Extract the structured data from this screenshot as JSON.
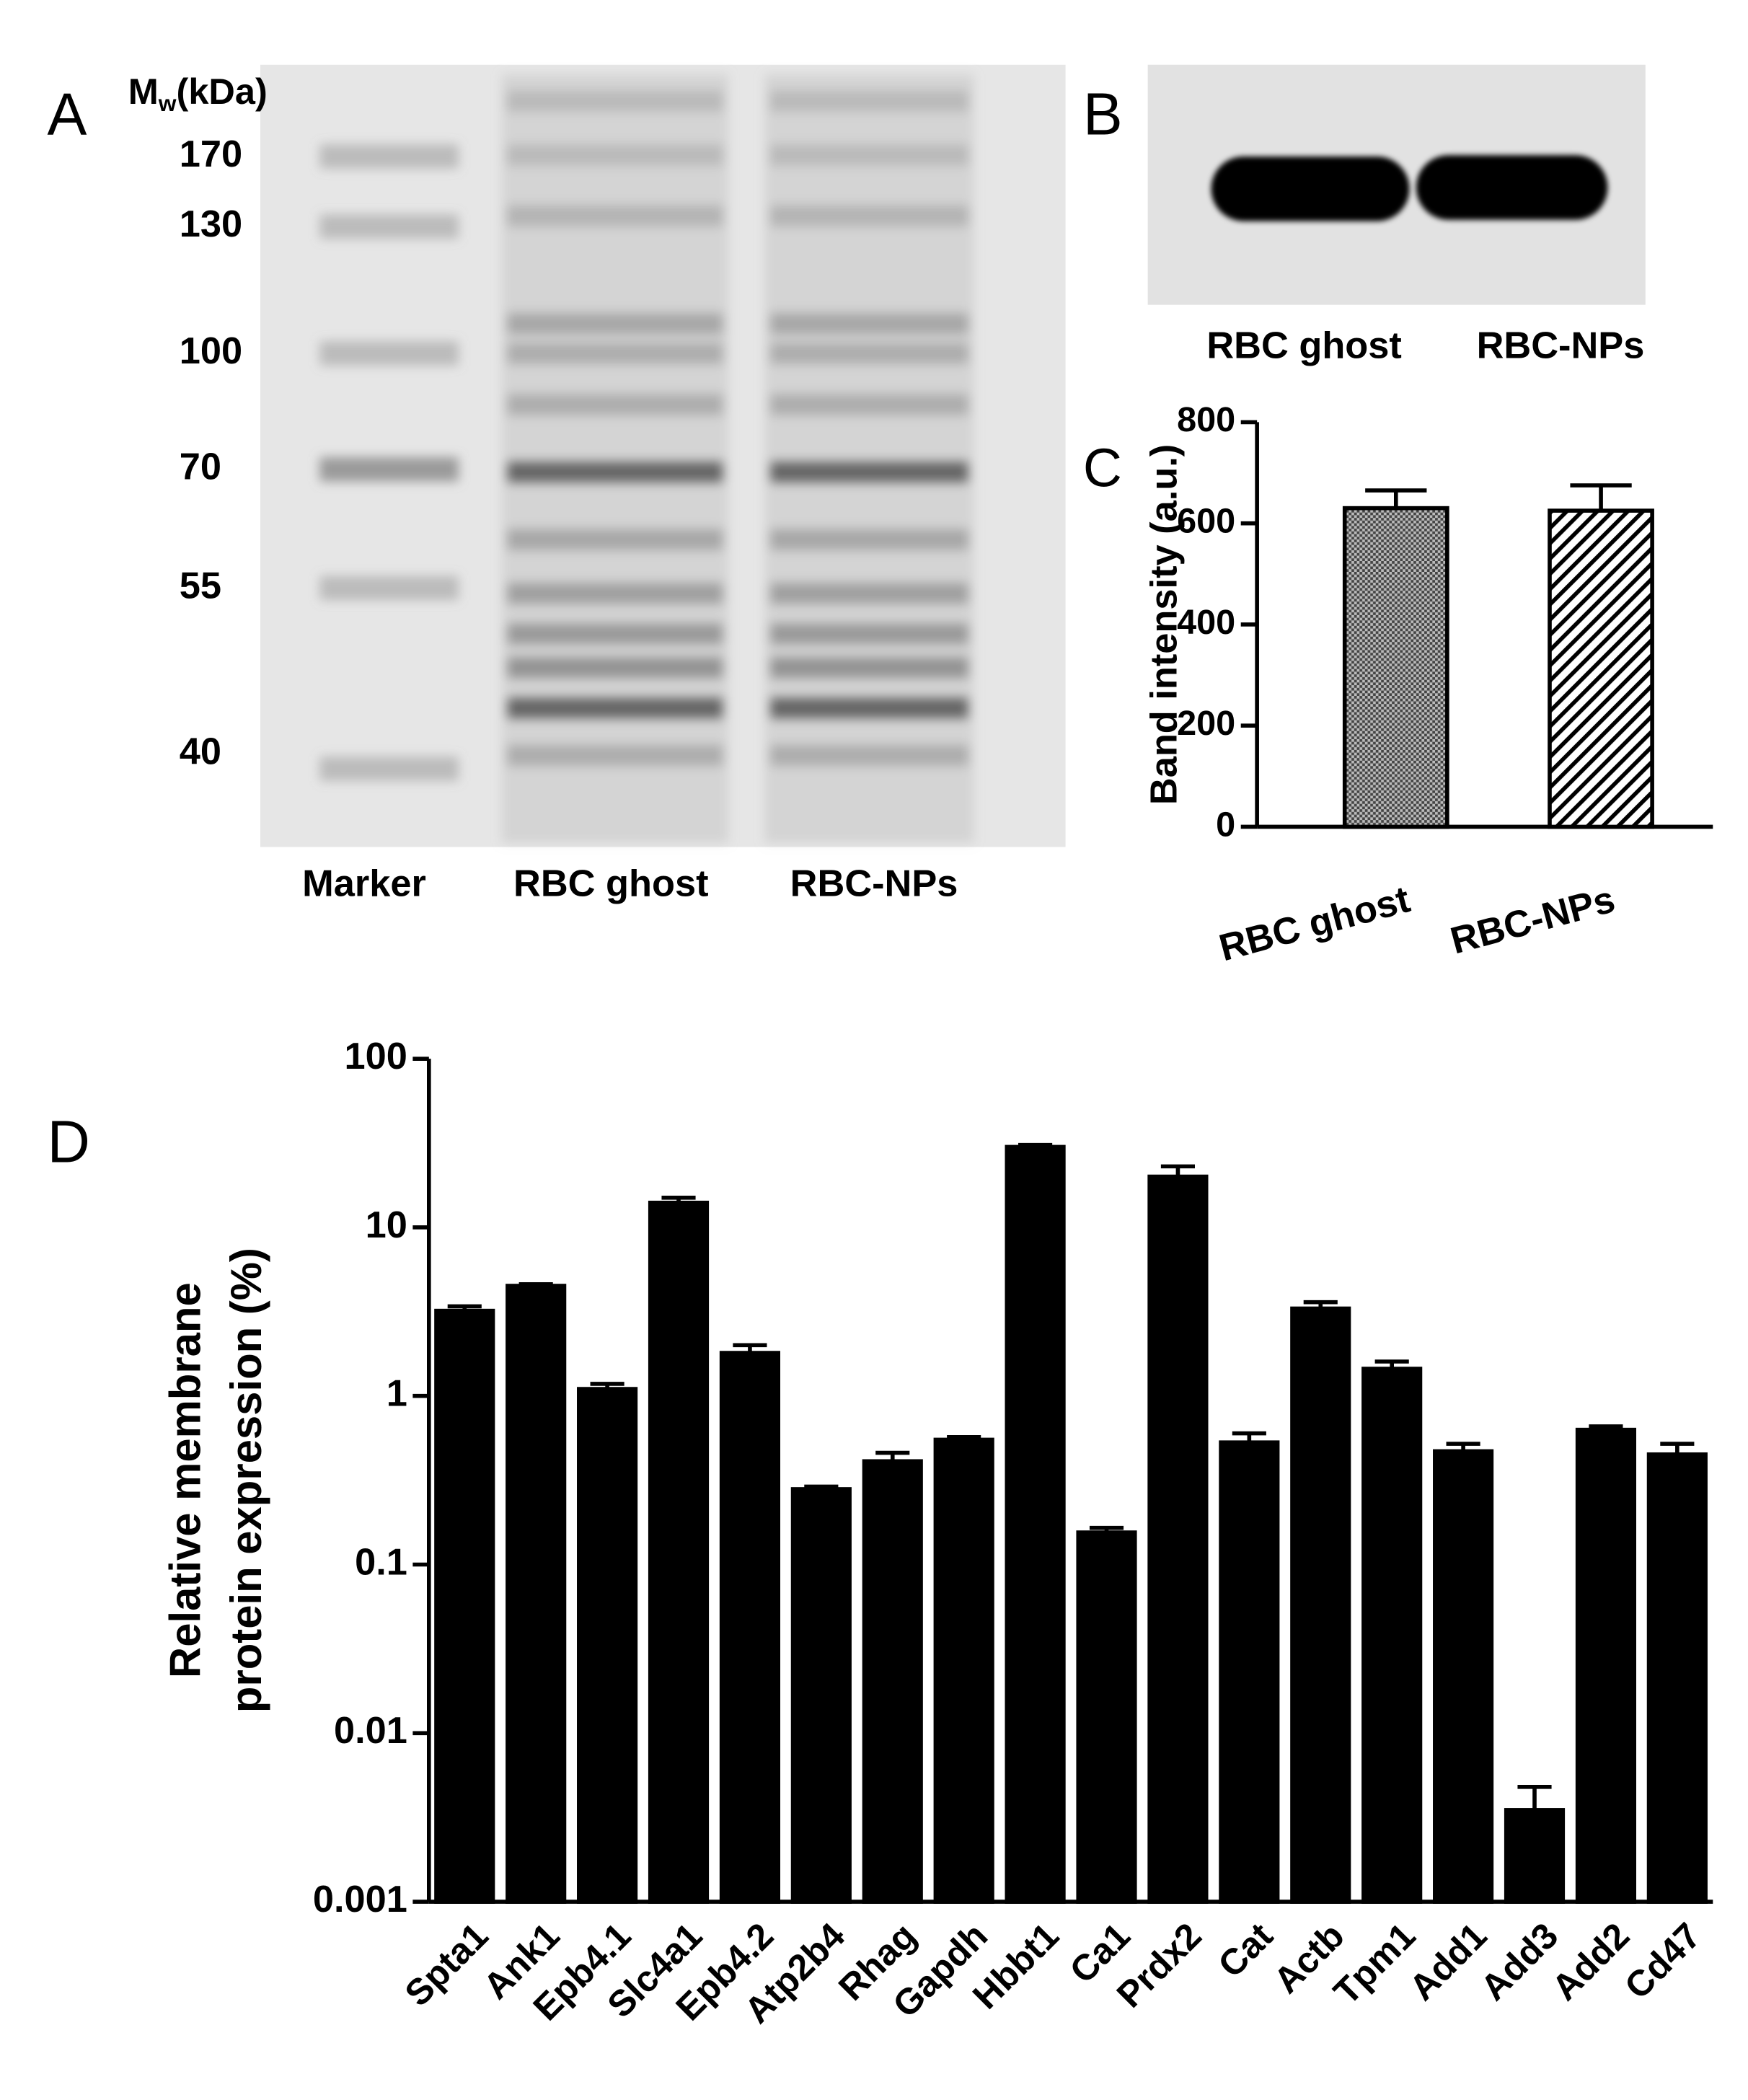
{
  "gel": {
    "panel_label": "A",
    "mw_label": "M",
    "mw_sub": "w",
    "mw_unit": "(kDa)",
    "markers": [
      "170",
      "130",
      "100",
      "70",
      "55",
      "40"
    ],
    "lanes": [
      "Marker",
      "RBC ghost",
      "RBC-NPs"
    ]
  },
  "blot": {
    "panel_label": "B",
    "lanes": [
      "RBC ghost",
      "RBC-NPs"
    ]
  },
  "chart_data": [
    {
      "type": "bar",
      "panel_label": "C",
      "y_label": "Band intensity (a.u.)",
      "categories": [
        "RBC ghost",
        "RBC-NPs"
      ],
      "values": [
        630,
        625
      ],
      "errors": [
        35,
        50
      ],
      "ylim": [
        0,
        800
      ],
      "yticks": [
        0,
        200,
        400,
        600,
        800
      ],
      "color": "#000000"
    },
    {
      "type": "bar",
      "panel_label": "D",
      "y_label": [
        "Relative membrane",
        "protein expression (%)"
      ],
      "categories": [
        "Spta1",
        "Ank1",
        "Epb4.1",
        "Slc4a1",
        "Epb4.2",
        "Atp2b4",
        "Rhag",
        "Gapdh",
        "Hbbt1",
        "Ca1",
        "Prdx2",
        "Cat",
        "Actb",
        "Tpm1",
        "Add1",
        "Add3",
        "Add2",
        "Cd47"
      ],
      "values": [
        3.2,
        4.5,
        1.1,
        14,
        1.8,
        0.28,
        0.41,
        0.55,
        30,
        0.155,
        20,
        0.53,
        3.3,
        1.45,
        0.47,
        0.0035,
        0.63,
        0.45
      ],
      "errors": [
        0.2,
        0.1,
        0.08,
        1,
        0.2,
        0.01,
        0.05,
        0.02,
        0.8,
        0.01,
        3,
        0.07,
        0.3,
        0.15,
        0.05,
        0.0013,
        0.03,
        0.07
      ],
      "log_scale": true,
      "ylim": [
        0.001,
        100
      ],
      "yticks": [
        0.001,
        0.01,
        0.1,
        1,
        10,
        100
      ],
      "color": "#000000"
    }
  ]
}
